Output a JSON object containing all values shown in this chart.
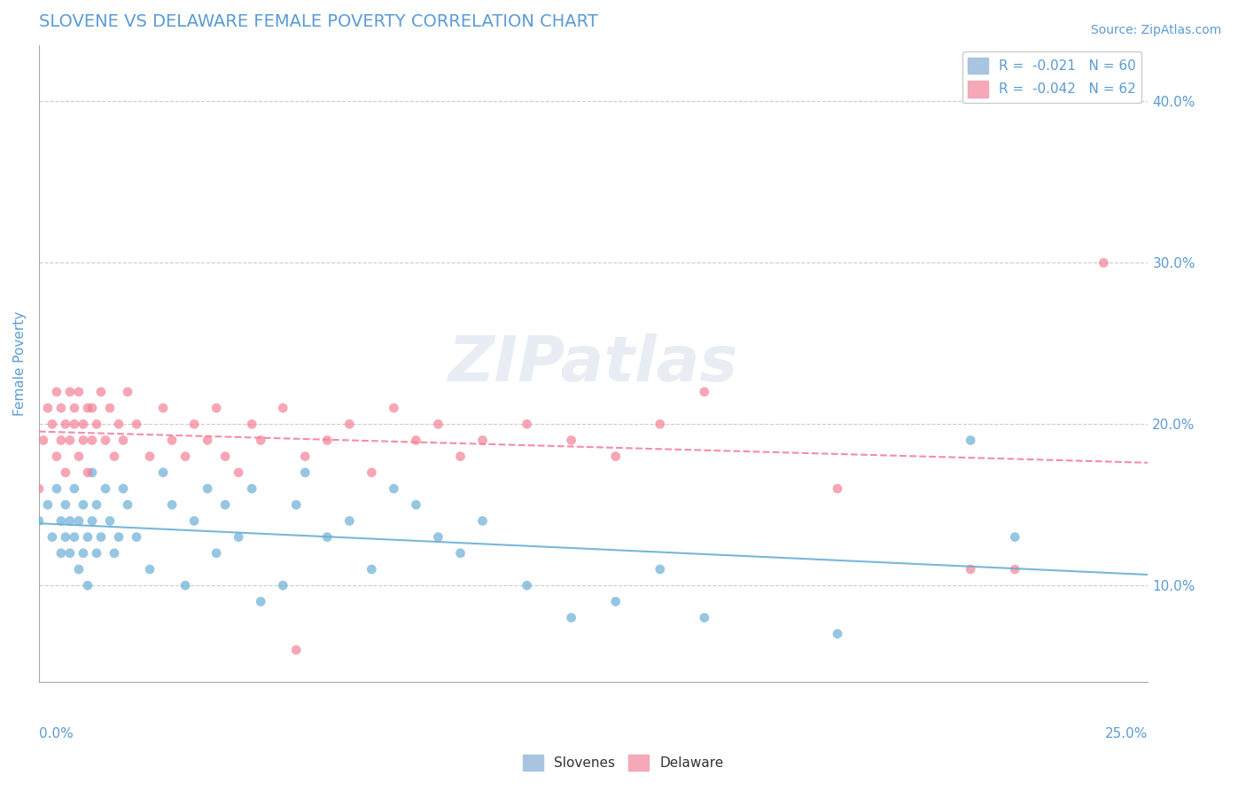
{
  "title": "SLOVENE VS DELAWARE FEMALE POVERTY CORRELATION CHART",
  "source": "Source: ZipAtlas.com",
  "ylabel": "Female Poverty",
  "right_yticks": [
    "10.0%",
    "20.0%",
    "30.0%",
    "40.0%"
  ],
  "right_ytick_vals": [
    0.1,
    0.2,
    0.3,
    0.4
  ],
  "xlim": [
    0.0,
    0.25
  ],
  "ylim": [
    0.04,
    0.435
  ],
  "legend_label_blue": "R =  -0.021   N = 60",
  "legend_label_pink": "R =  -0.042   N = 62",
  "slovene_color": "#6aaed6",
  "delaware_color": "#f48098",
  "legend_blue": "#a8c4e0",
  "legend_pink": "#f4a8b8",
  "background_color": "#ffffff",
  "watermark": "ZIPatlas",
  "slovene_x": [
    0.0,
    0.002,
    0.003,
    0.004,
    0.005,
    0.005,
    0.006,
    0.006,
    0.007,
    0.007,
    0.008,
    0.008,
    0.009,
    0.009,
    0.01,
    0.01,
    0.011,
    0.011,
    0.012,
    0.012,
    0.013,
    0.013,
    0.014,
    0.015,
    0.016,
    0.017,
    0.018,
    0.019,
    0.02,
    0.022,
    0.025,
    0.028,
    0.03,
    0.033,
    0.035,
    0.038,
    0.04,
    0.042,
    0.045,
    0.048,
    0.05,
    0.055,
    0.058,
    0.06,
    0.065,
    0.07,
    0.075,
    0.08,
    0.085,
    0.09,
    0.095,
    0.1,
    0.11,
    0.12,
    0.13,
    0.14,
    0.15,
    0.18,
    0.21,
    0.22
  ],
  "slovene_y": [
    0.14,
    0.15,
    0.13,
    0.16,
    0.14,
    0.12,
    0.13,
    0.15,
    0.14,
    0.12,
    0.13,
    0.16,
    0.14,
    0.11,
    0.12,
    0.15,
    0.13,
    0.1,
    0.14,
    0.17,
    0.12,
    0.15,
    0.13,
    0.16,
    0.14,
    0.12,
    0.13,
    0.16,
    0.15,
    0.13,
    0.11,
    0.17,
    0.15,
    0.1,
    0.14,
    0.16,
    0.12,
    0.15,
    0.13,
    0.16,
    0.09,
    0.1,
    0.15,
    0.17,
    0.13,
    0.14,
    0.11,
    0.16,
    0.15,
    0.13,
    0.12,
    0.14,
    0.1,
    0.08,
    0.09,
    0.11,
    0.08,
    0.07,
    0.19,
    0.13
  ],
  "delaware_x": [
    0.0,
    0.001,
    0.002,
    0.003,
    0.004,
    0.004,
    0.005,
    0.005,
    0.006,
    0.006,
    0.007,
    0.007,
    0.008,
    0.008,
    0.009,
    0.009,
    0.01,
    0.01,
    0.011,
    0.011,
    0.012,
    0.012,
    0.013,
    0.014,
    0.015,
    0.016,
    0.017,
    0.018,
    0.019,
    0.02,
    0.022,
    0.025,
    0.028,
    0.03,
    0.033,
    0.035,
    0.038,
    0.04,
    0.042,
    0.045,
    0.048,
    0.05,
    0.055,
    0.058,
    0.06,
    0.065,
    0.07,
    0.075,
    0.08,
    0.085,
    0.09,
    0.095,
    0.1,
    0.11,
    0.12,
    0.13,
    0.14,
    0.15,
    0.18,
    0.21,
    0.22,
    0.24
  ],
  "delaware_y": [
    0.16,
    0.19,
    0.21,
    0.2,
    0.22,
    0.18,
    0.21,
    0.19,
    0.2,
    0.17,
    0.22,
    0.19,
    0.2,
    0.21,
    0.18,
    0.22,
    0.2,
    0.19,
    0.21,
    0.17,
    0.19,
    0.21,
    0.2,
    0.22,
    0.19,
    0.21,
    0.18,
    0.2,
    0.19,
    0.22,
    0.2,
    0.18,
    0.21,
    0.19,
    0.18,
    0.2,
    0.19,
    0.21,
    0.18,
    0.17,
    0.2,
    0.19,
    0.21,
    0.06,
    0.18,
    0.19,
    0.2,
    0.17,
    0.21,
    0.19,
    0.2,
    0.18,
    0.19,
    0.2,
    0.19,
    0.18,
    0.2,
    0.22,
    0.16,
    0.11,
    0.11,
    0.3
  ]
}
